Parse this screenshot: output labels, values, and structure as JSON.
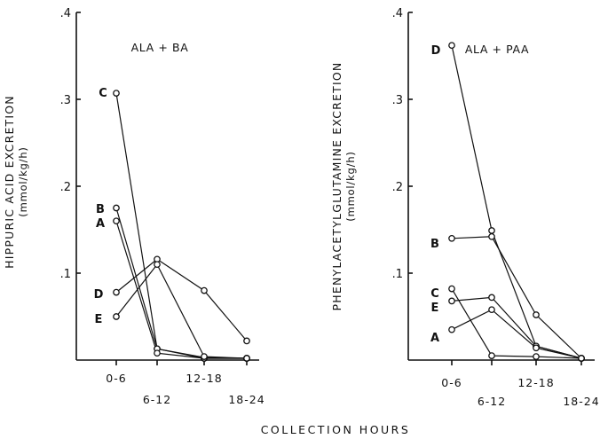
{
  "x_axis_title": "COLLECTION HOURS",
  "chart_data": [
    {
      "type": "line",
      "condition_label": "ALA + BA",
      "ylabel": "HIPPURIC ACID EXCRETION",
      "yunit": "(mmol/kg/h)",
      "ylim": [
        0,
        0.4
      ],
      "yticks": [
        {
          "value": 0.1,
          "label": ".1"
        },
        {
          "value": 0.2,
          "label": ".2"
        },
        {
          "value": 0.3,
          "label": ".3"
        },
        {
          "value": 0.4,
          "label": ".4"
        }
      ],
      "categories": [
        "0-6",
        "6-12",
        "12-18",
        "18-24"
      ],
      "series": [
        {
          "name": "C",
          "values": [
            0.307,
            0.013,
            0.002,
            0.002
          ]
        },
        {
          "name": "B",
          "values": [
            0.175,
            0.013,
            0.003,
            0.002
          ]
        },
        {
          "name": "A",
          "values": [
            0.16,
            0.008,
            0.002,
            0.002
          ]
        },
        {
          "name": "D",
          "values": [
            0.078,
            0.116,
            0.08,
            0.022
          ]
        },
        {
          "name": "E",
          "values": [
            0.05,
            0.11,
            0.004,
            0.002
          ]
        }
      ]
    },
    {
      "type": "line",
      "condition_label": "ALA + PAA",
      "ylabel": "PHENYLACETYLGLUTAMINE EXCRETION",
      "yunit": "(mmol/kg/h)",
      "ylim": [
        0,
        0.4
      ],
      "yticks": [
        {
          "value": 0.1,
          "label": ".1"
        },
        {
          "value": 0.2,
          "label": ".2"
        },
        {
          "value": 0.3,
          "label": ".3"
        },
        {
          "value": 0.4,
          "label": ".4"
        }
      ],
      "categories": [
        "0-6",
        "6-12",
        "12-18",
        "18-24"
      ],
      "series": [
        {
          "name": "D",
          "values": [
            0.362,
            0.149,
            0.016,
            0.002
          ]
        },
        {
          "name": "B",
          "values": [
            0.14,
            0.142,
            0.052,
            0.002
          ]
        },
        {
          "name": "C",
          "values": [
            0.082,
            0.005,
            0.004,
            0.002
          ]
        },
        {
          "name": "E",
          "values": [
            0.068,
            0.072,
            0.016,
            0.002
          ]
        },
        {
          "name": "A",
          "values": [
            0.035,
            0.058,
            0.014,
            0.002
          ]
        }
      ]
    }
  ]
}
